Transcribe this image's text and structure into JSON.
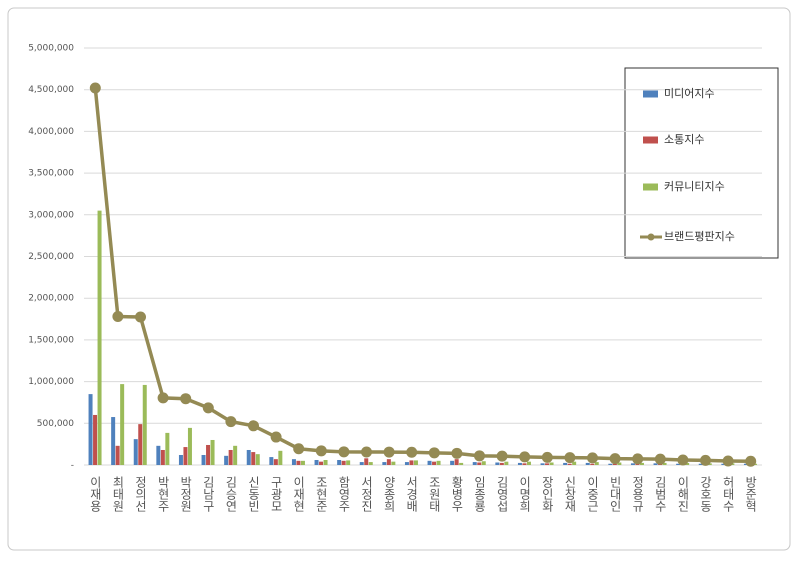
{
  "chart_data": {
    "type": "bar_line",
    "categories": [
      "이재용",
      "최태원",
      "정의선",
      "박현주",
      "박정원",
      "김남구",
      "김승연",
      "신동빈",
      "구광모",
      "이재현",
      "조현준",
      "함영주",
      "서정진",
      "양종희",
      "서경배",
      "조원태",
      "황병우",
      "임종룡",
      "김영섭",
      "이명희",
      "장인화",
      "신창재",
      "이중근",
      "빈대인",
      "정용규",
      "김범수",
      "이해진",
      "강호동",
      "허태수",
      "방준혁"
    ],
    "series": [
      {
        "name": "미디어지수",
        "color": "#4f81bd",
        "kind": "bar",
        "values": [
          850000,
          575000,
          310000,
          230000,
          120000,
          120000,
          110000,
          180000,
          95000,
          70000,
          60000,
          60000,
          35000,
          35000,
          35000,
          50000,
          50000,
          35000,
          30000,
          25000,
          20000,
          25000,
          25000,
          15000,
          20000,
          20000,
          15000,
          15000,
          15000,
          15000
        ]
      },
      {
        "name": "소통지수",
        "color": "#c0504d",
        "kind": "bar",
        "values": [
          600000,
          230000,
          490000,
          180000,
          215000,
          240000,
          180000,
          155000,
          70000,
          50000,
          40000,
          50000,
          80000,
          70000,
          55000,
          40000,
          70000,
          30000,
          25000,
          20000,
          20000,
          15000,
          15000,
          15000,
          15000,
          20000,
          15000,
          15000,
          10000,
          10000
        ]
      },
      {
        "name": "커뮤니티지수",
        "color": "#9bbb59",
        "kind": "bar",
        "values": [
          3050000,
          970000,
          960000,
          385000,
          445000,
          300000,
          230000,
          130000,
          170000,
          50000,
          60000,
          55000,
          35000,
          40000,
          55000,
          50000,
          25000,
          45000,
          40000,
          40000,
          30000,
          40000,
          35000,
          30000,
          25000,
          25000,
          25000,
          20000,
          20000,
          15000
        ]
      },
      {
        "name": "브랜드평판지수",
        "color": "#948a54",
        "kind": "line",
        "values": [
          4520000,
          1780000,
          1775000,
          805000,
          795000,
          685000,
          520000,
          470000,
          335000,
          195000,
          170000,
          158000,
          156000,
          155000,
          153000,
          146000,
          140000,
          110000,
          106000,
          97000,
          91000,
          88000,
          85000,
          76000,
          73000,
          70000,
          60000,
          55000,
          48000,
          45000
        ]
      }
    ],
    "ylim": [
      0,
      5000000
    ],
    "yticks": [
      {
        "value": 0,
        "label": "-"
      },
      {
        "value": 500000,
        "label": "500,000"
      },
      {
        "value": 1000000,
        "label": "1,000,000"
      },
      {
        "value": 1500000,
        "label": "1,500,000"
      },
      {
        "value": 2000000,
        "label": "2,000,000"
      },
      {
        "value": 2500000,
        "label": "2,500,000"
      },
      {
        "value": 3000000,
        "label": "3,000,000"
      },
      {
        "value": 3500000,
        "label": "3,500,000"
      },
      {
        "value": 4000000,
        "label": "4,000,000"
      },
      {
        "value": 4500000,
        "label": "4,500,000"
      },
      {
        "value": 5000000,
        "label": "5,000,000"
      }
    ],
    "grid": true,
    "legend": "right"
  }
}
